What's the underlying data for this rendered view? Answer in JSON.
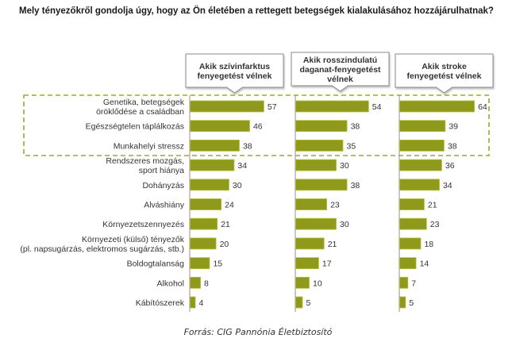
{
  "title": "Mely tényezőkről gondolja úgy, hogy az Ön életében a rettegett betegségek kialakulásához hozzájárulhatnak?",
  "source": "Forrás: CIG Pannónia Életbiztosító",
  "colors": {
    "bar": "#8f9a1c",
    "bar_border": "#b5c03a",
    "highlight_dash": "#9aab2c",
    "axis": "#9a8c8c"
  },
  "chart_data": {
    "type": "bar",
    "orientation": "horizontal",
    "title": "Mely tényezőkről gondolja úgy, hogy az Ön életében a rettegett betegségek kialakulásához hozzájárulhatnak?",
    "categories": [
      [
        "Genetika, betegségek",
        "öröklődése a családban"
      ],
      [
        "Egészségtelen táplálkozás"
      ],
      [
        "Munkahelyi stressz"
      ],
      [
        "Rendszeres mozgás,",
        "sport hiánya"
      ],
      [
        "Dohányzás"
      ],
      [
        "Alváshiány"
      ],
      [
        "Környezetszennyezés"
      ],
      [
        "Környezeti (külső) tényezők",
        "(pl. napsugárzás, elektromos sugárzás, stb.)"
      ],
      [
        "Boldogtalanság"
      ],
      [
        "Alkohol"
      ],
      [
        "Kábítószerek"
      ]
    ],
    "series": [
      {
        "name": [
          "Akik szívinfarktus",
          "fenyegetést vélnek"
        ],
        "values": [
          57,
          46,
          38,
          34,
          30,
          24,
          21,
          20,
          15,
          8,
          4
        ]
      },
      {
        "name": [
          "Akik rosszindulatú",
          "daganat-fenyegetést",
          "vélnek"
        ],
        "values": [
          54,
          38,
          35,
          30,
          38,
          23,
          30,
          21,
          17,
          10,
          5
        ]
      },
      {
        "name": [
          "Akik stroke",
          "fenyegetést vélnek"
        ],
        "values": [
          64,
          39,
          38,
          36,
          34,
          21,
          23,
          18,
          14,
          7,
          5
        ]
      }
    ],
    "highlighted_categories": [
      0,
      1,
      2
    ],
    "xlabel": "",
    "ylabel": "",
    "grid": false,
    "legend": "panel headers on top"
  }
}
